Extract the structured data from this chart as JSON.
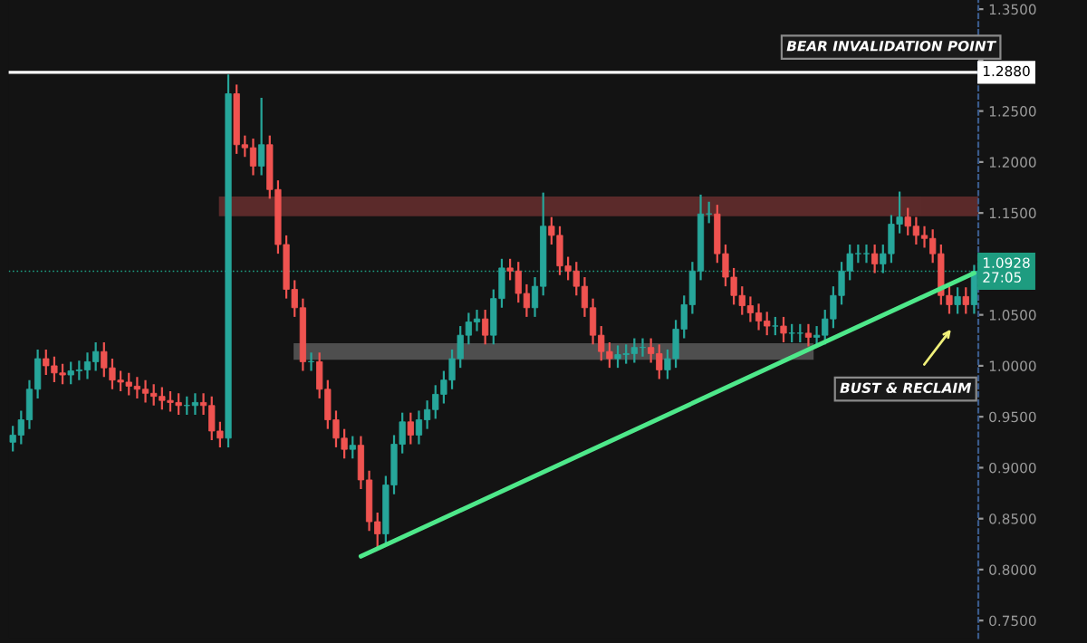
{
  "chart_data": {
    "type": "candlestick",
    "categories": [
      null,
      null,
      null,
      null,
      null,
      null,
      null,
      null,
      null,
      null,
      null,
      null,
      null,
      null,
      null,
      null,
      null,
      null,
      null,
      null,
      null,
      null,
      null,
      null,
      null,
      null,
      null,
      null,
      null,
      null,
      null,
      null,
      null,
      null,
      null,
      null,
      null,
      null,
      null,
      null,
      null,
      null,
      null,
      null,
      null,
      null,
      null,
      null,
      null,
      null,
      null,
      null,
      null,
      null,
      null,
      null,
      null,
      null,
      null,
      null,
      null,
      null,
      null,
      null,
      null,
      null,
      null,
      null,
      null,
      null,
      null,
      null,
      null,
      null,
      null,
      null,
      null,
      null,
      null,
      null,
      null,
      null,
      null,
      null,
      null,
      null,
      null,
      null,
      null,
      null,
      null,
      null,
      null,
      null,
      null,
      null,
      null,
      null,
      null,
      null,
      null,
      null,
      null,
      null,
      null,
      null,
      null,
      null,
      null,
      null,
      null,
      null,
      null,
      null,
      null,
      null,
      null
    ],
    "ohlc": [
      [
        0.925,
        0.94,
        0.917,
        0.932
      ],
      [
        0.932,
        0.955,
        0.924,
        0.947
      ],
      [
        0.947,
        0.985,
        0.939,
        0.977
      ],
      [
        0.977,
        1.015,
        0.969,
        1.007
      ],
      [
        1.007,
        1.015,
        0.992,
        1.0
      ],
      [
        1.0,
        1.008,
        0.985,
        0.993
      ],
      [
        0.993,
        1.001,
        0.983,
        0.991
      ],
      [
        0.991,
        1.003,
        0.983,
        0.995
      ],
      [
        0.995,
        1.004,
        0.987,
        0.996
      ],
      [
        0.996,
        1.012,
        0.988,
        1.004
      ],
      [
        1.004,
        1.022,
        0.996,
        1.014
      ],
      [
        1.014,
        1.022,
        0.99,
        0.998
      ],
      [
        0.998,
        1.006,
        0.978,
        0.986
      ],
      [
        0.986,
        0.994,
        0.976,
        0.984
      ],
      [
        0.984,
        0.992,
        0.972,
        0.98
      ],
      [
        0.98,
        0.988,
        0.969,
        0.977
      ],
      [
        0.977,
        0.985,
        0.965,
        0.973
      ],
      [
        0.973,
        0.981,
        0.962,
        0.97
      ],
      [
        0.97,
        0.978,
        0.958,
        0.966
      ],
      [
        0.966,
        0.974,
        0.956,
        0.964
      ],
      [
        0.964,
        0.972,
        0.953,
        0.961
      ],
      [
        0.961,
        0.969,
        0.953,
        0.961
      ],
      [
        0.961,
        0.972,
        0.953,
        0.964
      ],
      [
        0.964,
        0.972,
        0.953,
        0.961
      ],
      [
        0.961,
        0.969,
        0.928,
        0.936
      ],
      [
        0.936,
        0.944,
        0.921,
        0.929
      ],
      [
        0.929,
        1.285,
        0.921,
        1.267
      ],
      [
        1.267,
        1.275,
        1.209,
        1.217
      ],
      [
        1.217,
        1.225,
        1.206,
        1.214
      ],
      [
        1.214,
        1.222,
        1.188,
        1.196
      ],
      [
        1.196,
        1.262,
        1.188,
        1.217
      ],
      [
        1.217,
        1.225,
        1.165,
        1.173
      ],
      [
        1.173,
        1.181,
        1.111,
        1.119
      ],
      [
        1.119,
        1.127,
        1.067,
        1.075
      ],
      [
        1.075,
        1.083,
        1.049,
        1.057
      ],
      [
        1.057,
        1.065,
        0.996,
        1.004
      ],
      [
        1.004,
        1.012,
        0.996,
        1.004
      ],
      [
        1.004,
        1.012,
        0.969,
        0.977
      ],
      [
        0.977,
        0.985,
        0.939,
        0.947
      ],
      [
        0.947,
        0.955,
        0.921,
        0.929
      ],
      [
        0.929,
        0.937,
        0.91,
        0.918
      ],
      [
        0.918,
        0.93,
        0.91,
        0.922
      ],
      [
        0.922,
        0.93,
        0.88,
        0.888
      ],
      [
        0.888,
        0.896,
        0.839,
        0.847
      ],
      [
        0.847,
        0.855,
        0.822,
        0.835
      ],
      [
        0.835,
        0.891,
        0.827,
        0.883
      ],
      [
        0.883,
        0.931,
        0.875,
        0.923
      ],
      [
        0.923,
        0.953,
        0.915,
        0.945
      ],
      [
        0.945,
        0.953,
        0.924,
        0.932
      ],
      [
        0.932,
        0.955,
        0.924,
        0.947
      ],
      [
        0.947,
        0.965,
        0.939,
        0.957
      ],
      [
        0.957,
        0.98,
        0.949,
        0.972
      ],
      [
        0.972,
        0.994,
        0.964,
        0.986
      ],
      [
        0.986,
        1.015,
        0.978,
        1.007
      ],
      [
        1.007,
        1.038,
        0.999,
        1.03
      ],
      [
        1.03,
        1.051,
        1.022,
        1.043
      ],
      [
        1.043,
        1.054,
        1.035,
        1.046
      ],
      [
        1.046,
        1.054,
        1.022,
        1.03
      ],
      [
        1.03,
        1.074,
        1.022,
        1.066
      ],
      [
        1.066,
        1.104,
        1.058,
        1.096
      ],
      [
        1.096,
        1.104,
        1.085,
        1.093
      ],
      [
        1.093,
        1.101,
        1.063,
        1.071
      ],
      [
        1.071,
        1.079,
        1.049,
        1.057
      ],
      [
        1.057,
        1.086,
        1.049,
        1.078
      ],
      [
        1.078,
        1.169,
        1.07,
        1.137
      ],
      [
        1.137,
        1.145,
        1.12,
        1.128
      ],
      [
        1.128,
        1.136,
        1.09,
        1.098
      ],
      [
        1.098,
        1.106,
        1.085,
        1.093
      ],
      [
        1.093,
        1.101,
        1.07,
        1.078
      ],
      [
        1.078,
        1.086,
        1.049,
        1.057
      ],
      [
        1.057,
        1.065,
        1.022,
        1.03
      ],
      [
        1.03,
        1.038,
        1.006,
        1.014
      ],
      [
        1.014,
        1.022,
        0.999,
        1.007
      ],
      [
        1.007,
        1.019,
        0.999,
        1.011
      ],
      [
        1.011,
        1.02,
        1.003,
        1.012
      ],
      [
        1.012,
        1.026,
        1.004,
        1.018
      ],
      [
        1.018,
        1.026,
        1.01,
        1.018
      ],
      [
        1.018,
        1.026,
        1.004,
        1.012
      ],
      [
        1.012,
        1.02,
        0.988,
        0.996
      ],
      [
        0.996,
        1.015,
        0.988,
        1.007
      ],
      [
        1.007,
        1.044,
        0.999,
        1.036
      ],
      [
        1.036,
        1.068,
        1.028,
        1.06
      ],
      [
        1.06,
        1.101,
        1.052,
        1.093
      ],
      [
        1.093,
        1.167,
        1.085,
        1.149
      ],
      [
        1.149,
        1.16,
        1.141,
        1.149
      ],
      [
        1.149,
        1.157,
        1.102,
        1.11
      ],
      [
        1.11,
        1.118,
        1.079,
        1.087
      ],
      [
        1.087,
        1.095,
        1.061,
        1.069
      ],
      [
        1.069,
        1.077,
        1.051,
        1.059
      ],
      [
        1.059,
        1.067,
        1.044,
        1.052
      ],
      [
        1.052,
        1.06,
        1.036,
        1.044
      ],
      [
        1.044,
        1.052,
        1.031,
        1.039
      ],
      [
        1.039,
        1.047,
        1.031,
        1.039
      ],
      [
        1.039,
        1.047,
        1.024,
        1.032
      ],
      [
        1.032,
        1.04,
        1.024,
        1.032
      ],
      [
        1.032,
        1.04,
        1.024,
        1.032
      ],
      [
        1.032,
        1.04,
        1.02,
        1.028
      ],
      [
        1.028,
        1.038,
        1.02,
        1.03
      ],
      [
        1.03,
        1.054,
        1.022,
        1.046
      ],
      [
        1.046,
        1.077,
        1.038,
        1.069
      ],
      [
        1.069,
        1.101,
        1.061,
        1.093
      ],
      [
        1.093,
        1.118,
        1.085,
        1.11
      ],
      [
        1.11,
        1.118,
        1.102,
        1.11
      ],
      [
        1.11,
        1.118,
        1.102,
        1.11
      ],
      [
        1.11,
        1.118,
        1.092,
        1.1
      ],
      [
        1.1,
        1.118,
        1.092,
        1.11
      ],
      [
        1.11,
        1.147,
        1.102,
        1.139
      ],
      [
        1.139,
        1.17,
        1.131,
        1.146
      ],
      [
        1.146,
        1.154,
        1.129,
        1.137
      ],
      [
        1.137,
        1.145,
        1.12,
        1.128
      ],
      [
        1.128,
        1.136,
        1.117,
        1.125
      ],
      [
        1.125,
        1.133,
        1.102,
        1.11
      ],
      [
        1.11,
        1.118,
        1.061,
        1.069
      ],
      [
        1.069,
        1.077,
        1.052,
        1.06
      ],
      [
        1.06,
        1.076,
        1.052,
        1.068
      ],
      [
        1.068,
        1.076,
        1.052,
        1.06
      ],
      [
        1.06,
        1.098,
        1.052,
        1.0928
      ]
    ],
    "colors": [
      "#26a69a",
      "#26a69a",
      "#26a69a",
      "#26a69a",
      "#ef5350",
      "#ef5350",
      "#ef5350",
      "#26a69a",
      "#26a69a",
      "#26a69a",
      "#26a69a",
      "#ef5350",
      "#ef5350",
      "#ef5350",
      "#ef5350",
      "#ef5350",
      "#ef5350",
      "#ef5350",
      "#ef5350",
      "#ef5350",
      "#ef5350",
      "#26a69a",
      "#26a69a",
      "#ef5350",
      "#ef5350",
      "#ef5350",
      "#26a69a",
      "#ef5350",
      "#ef5350",
      "#ef5350",
      "#26a69a",
      "#ef5350",
      "#ef5350",
      "#ef5350",
      "#ef5350",
      "#ef5350",
      "#26a69a",
      "#ef5350",
      "#ef5350",
      "#ef5350",
      "#ef5350",
      "#26a69a",
      "#ef5350",
      "#ef5350",
      "#ef5350",
      "#26a69a",
      "#26a69a",
      "#26a69a",
      "#ef5350",
      "#26a69a",
      "#26a69a",
      "#26a69a",
      "#26a69a",
      "#26a69a",
      "#26a69a",
      "#26a69a",
      "#26a69a",
      "#ef5350",
      "#26a69a",
      "#26a69a",
      "#ef5350",
      "#ef5350",
      "#ef5350",
      "#26a69a",
      "#26a69a",
      "#ef5350",
      "#ef5350",
      "#ef5350",
      "#ef5350",
      "#ef5350",
      "#ef5350",
      "#ef5350",
      "#ef5350",
      "#26a69a",
      "#26a69a",
      "#26a69a",
      "#26a69a",
      "#ef5350",
      "#ef5350",
      "#26a69a",
      "#26a69a",
      "#26a69a",
      "#26a69a",
      "#26a69a",
      "#26a69a",
      "#ef5350",
      "#ef5350",
      "#ef5350",
      "#ef5350",
      "#ef5350",
      "#ef5350",
      "#ef5350",
      "#26a69a",
      "#ef5350",
      "#26a69a",
      "#26a69a",
      "#ef5350",
      "#26a69a",
      "#26a69a",
      "#26a69a",
      "#26a69a",
      "#26a69a",
      "#26a69a",
      "#26a69a",
      "#ef5350",
      "#26a69a",
      "#26a69a",
      "#26a69a",
      "#ef5350",
      "#ef5350",
      "#ef5350",
      "#ef5350",
      "#ef5350",
      "#ef5350",
      "#26a69a",
      "#ef5350",
      "#26a69a"
    ],
    "series": [
      {
        "type": "line",
        "values": [
          null,
          null,
          null,
          null,
          null,
          null,
          null,
          null,
          null,
          null,
          null,
          null,
          null,
          null,
          null,
          null,
          null,
          null,
          null,
          null,
          null,
          null,
          null,
          null,
          null,
          null,
          null,
          null,
          null,
          null,
          null,
          null,
          null,
          null,
          null,
          null,
          null,
          null,
          null,
          null,
          null,
          null,
          0.813,
          null,
          null,
          null,
          null,
          null,
          null,
          null,
          null,
          null,
          null,
          null,
          null,
          null,
          null,
          null,
          null,
          null,
          null,
          null,
          null,
          null,
          null,
          null,
          null,
          null,
          null,
          null,
          null,
          null,
          null,
          null,
          null,
          null,
          null,
          null,
          null,
          null,
          null,
          null,
          null,
          null,
          null,
          null,
          null,
          null,
          null,
          null,
          null,
          null,
          null,
          null,
          null,
          null,
          null,
          null,
          null,
          null,
          null,
          null,
          null,
          null,
          null,
          null,
          null,
          null,
          null,
          null,
          null,
          null,
          null,
          null,
          null,
          null,
          1.091
        ],
        "color": "#4ee88a"
      }
    ],
    "ylim": [
      0.733,
      1.359
    ],
    "yticks": [
      {
        "value": 0.75,
        "label": "0.7500"
      },
      {
        "value": 0.8,
        "label": "0.8000"
      },
      {
        "value": 0.85,
        "label": "0.8500"
      },
      {
        "value": 0.9,
        "label": "0.9000"
      },
      {
        "value": 0.95,
        "label": "0.9500"
      },
      {
        "value": 1.0,
        "label": "1.0000"
      },
      {
        "value": 1.05,
        "label": "1.0500"
      },
      {
        "value": 1.15,
        "label": "1.1500"
      },
      {
        "value": 1.2,
        "label": "1.2000"
      },
      {
        "value": 1.25,
        "label": "1.2500"
      },
      {
        "value": 1.3,
        "label": null
      },
      {
        "value": 1.35,
        "label": "1.3500"
      }
    ],
    "tick_labels": "y",
    "grid": false,
    "legend": false,
    "ref_lines": [
      {
        "axis": "y",
        "value": 1.288,
        "label": "1.2880",
        "color": "#ffffff",
        "line_style": "solid"
      },
      {
        "axis": "y",
        "value": 1.0928,
        "label": "1.0928\n27:05",
        "color": "#1e9c80",
        "line_style": "dotted"
      }
    ],
    "bands": [
      {
        "axis": "y",
        "from": 1.148,
        "to": 1.165,
        "color": "#e05555"
      },
      {
        "axis": "y",
        "from": 1.007,
        "to": 1.021,
        "color": "#bbbbbb"
      }
    ],
    "annotations": [
      {
        "text": "BEAR INVALIDATION POINT",
        "y": 1.288
      },
      "BUST & RECLAIM"
    ]
  }
}
